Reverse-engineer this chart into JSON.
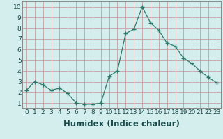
{
  "x": [
    0,
    1,
    2,
    3,
    4,
    5,
    6,
    7,
    8,
    9,
    10,
    11,
    12,
    13,
    14,
    15,
    16,
    17,
    18,
    19,
    20,
    21,
    22,
    23
  ],
  "y": [
    2.2,
    3.0,
    2.7,
    2.2,
    2.4,
    1.9,
    1.0,
    0.9,
    0.9,
    1.0,
    3.5,
    4.0,
    7.5,
    7.9,
    10.0,
    8.5,
    7.8,
    6.6,
    6.3,
    5.2,
    4.7,
    4.0,
    3.4,
    2.9
  ],
  "xlabel": "Humidex (Indice chaleur)",
  "ylim": [
    0.5,
    10.5
  ],
  "xlim": [
    -0.5,
    23.5
  ],
  "line_color": "#2d7a6a",
  "marker_color": "#2d7a6a",
  "bg_color": "#d4eeee",
  "grid_color": "#c4a0a0",
  "tick_label_fontsize": 6.5,
  "xlabel_fontsize": 8.5,
  "yticks": [
    1,
    2,
    3,
    4,
    5,
    6,
    7,
    8,
    9,
    10
  ],
  "xticks": [
    0,
    1,
    2,
    3,
    4,
    5,
    6,
    7,
    8,
    9,
    10,
    11,
    12,
    13,
    14,
    15,
    16,
    17,
    18,
    19,
    20,
    21,
    22,
    23
  ]
}
